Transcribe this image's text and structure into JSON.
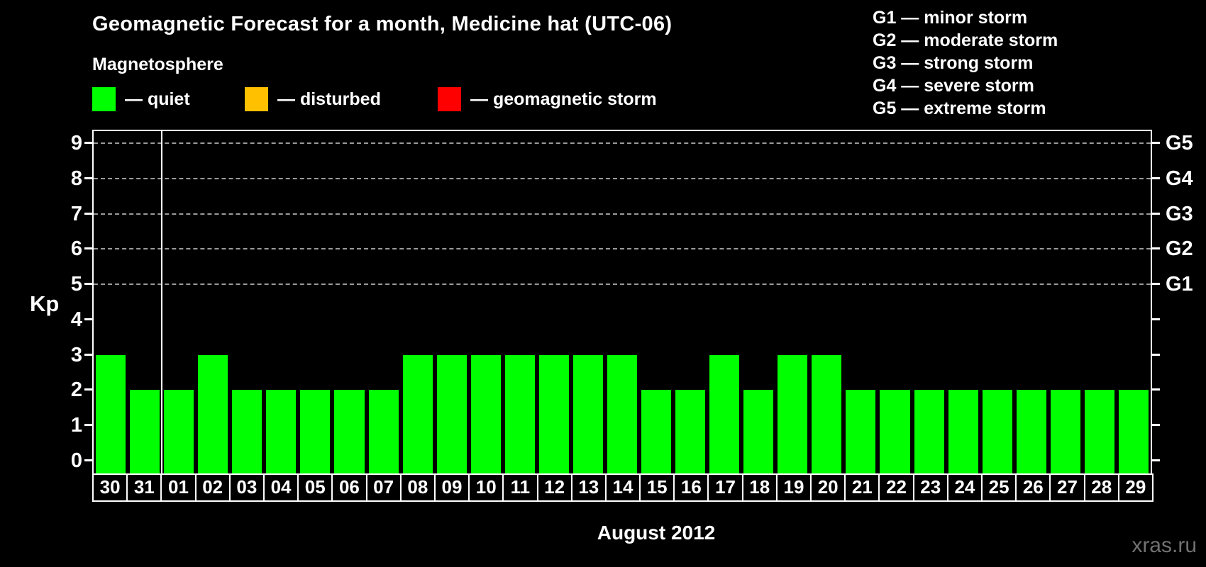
{
  "title": "Geomagnetic Forecast for a month, Medicine hat (UTC-06)",
  "watermark": "xras.ru",
  "magnetosphere": {
    "heading": "Magnetosphere",
    "separator": "—",
    "items": [
      {
        "label": "quiet",
        "color": "#00ff00"
      },
      {
        "label": "disturbed",
        "color": "#ffc000"
      },
      {
        "label": "geomagnetic storm",
        "color": "#ff0000"
      }
    ]
  },
  "storm_scale": {
    "separator": "—",
    "entries": [
      {
        "code": "G1",
        "label": "minor storm"
      },
      {
        "code": "G2",
        "label": "moderate storm"
      },
      {
        "code": "G3",
        "label": "strong storm"
      },
      {
        "code": "G4",
        "label": "severe storm"
      },
      {
        "code": "G5",
        "label": "extreme storm"
      }
    ]
  },
  "chart_data": {
    "type": "bar",
    "title": "Geomagnetic Forecast for a month, Medicine hat (UTC-06)",
    "xlabel": "August 2012",
    "ylabel": "Kp",
    "ylim": [
      0,
      9
    ],
    "yticks": [
      0,
      1,
      2,
      3,
      4,
      5,
      6,
      7,
      8,
      9
    ],
    "gridlines_kp": [
      5,
      6,
      7,
      8,
      9
    ],
    "grid_style": "dashed-horizontal",
    "legend_position": "top-left",
    "bar_color": "#00ff00",
    "categories": [
      "30",
      "31",
      "01",
      "02",
      "03",
      "04",
      "05",
      "06",
      "07",
      "08",
      "09",
      "10",
      "11",
      "12",
      "13",
      "14",
      "15",
      "16",
      "17",
      "18",
      "19",
      "20",
      "21",
      "22",
      "23",
      "24",
      "25",
      "26",
      "27",
      "28",
      "29"
    ],
    "values": [
      3,
      2,
      2,
      3,
      2,
      2,
      2,
      2,
      2,
      3,
      3,
      3,
      3,
      3,
      3,
      3,
      2,
      2,
      3,
      2,
      3,
      3,
      2,
      2,
      2,
      2,
      2,
      2,
      2,
      2,
      2
    ],
    "month_boundary_index": 2,
    "right_axis": [
      {
        "kp": 5,
        "label": "G1"
      },
      {
        "kp": 6,
        "label": "G2"
      },
      {
        "kp": 7,
        "label": "G3"
      },
      {
        "kp": 8,
        "label": "G4"
      },
      {
        "kp": 9,
        "label": "G5"
      }
    ]
  }
}
